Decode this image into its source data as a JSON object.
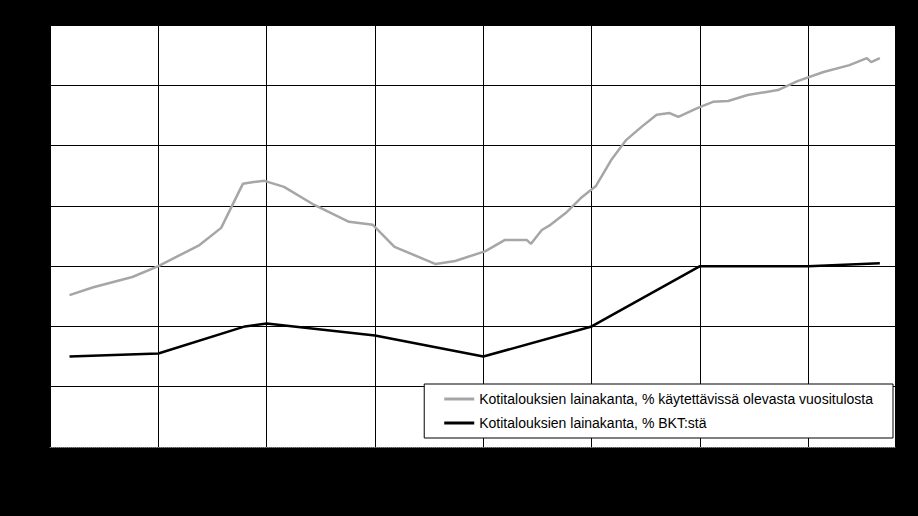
{
  "chart_data": {
    "type": "line",
    "tick_labels": false,
    "grid": true,
    "legend": "lower right",
    "xlim": [
      1980,
      2019
    ],
    "xticks": [
      1980,
      1985,
      1990,
      1995,
      2000,
      2005,
      2010,
      2015
    ],
    "ylim": [
      0,
      140
    ],
    "yticks": [
      0,
      20,
      40,
      60,
      80,
      100,
      120,
      140
    ],
    "series": [
      {
        "name": "Kotitalouksien lainakanta, % käytettävissä olevasta vuositulosta",
        "color": "#a6a6a6",
        "x": [
          1980.9,
          1982.0,
          1983.8,
          1985.0,
          1986.9,
          1987.9,
          1988.9,
          1989.4,
          1989.9,
          1990.8,
          1992.2,
          1993.8,
          1994.9,
          1995.9,
          1997.8,
          1998.7,
          2000.1,
          2001.0,
          2002.0,
          2002.2,
          2002.7,
          2003.1,
          2003.8,
          2004.5,
          2005.2,
          2005.9,
          2006.6,
          2007.3,
          2008.0,
          2008.6,
          2009.0,
          2009.9,
          2010.6,
          2011.3,
          2012.2,
          2013.6,
          2014.5,
          2015.7,
          2016.9,
          2017.7,
          2017.9,
          2018.3
        ],
        "values": [
          50.4,
          53,
          56.4,
          60,
          67,
          72.7,
          87.3,
          87.9,
          88.3,
          86.3,
          80.3,
          74.7,
          73.7,
          66.4,
          60.7,
          61.7,
          65,
          68.7,
          68.7,
          67.4,
          72,
          73.7,
          77.6,
          82.6,
          86.6,
          95.2,
          101.9,
          106.2,
          110.2,
          110.8,
          109.5,
          112.5,
          114.5,
          114.8,
          116.8,
          118.4,
          121.4,
          124.4,
          126.7,
          129,
          127.7,
          129
        ]
      },
      {
        "name": "Kotitalouksien lainakanta, % BKT:stä",
        "color": "#000000",
        "x": [
          1980.9,
          1985.0,
          1989.0,
          1990.0,
          1995.0,
          2000.0,
          2005.0,
          2010.0,
          2015.0,
          2018.3
        ],
        "values": [
          30,
          31,
          40,
          41,
          37,
          30,
          40,
          60,
          60,
          61
        ]
      }
    ]
  }
}
